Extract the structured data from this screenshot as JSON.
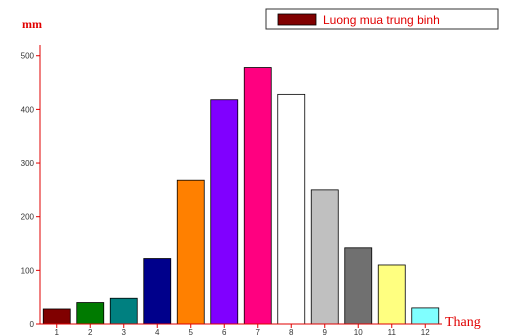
{
  "chart_data": {
    "type": "bar",
    "ylabel": "mm",
    "xlabel": "Thang",
    "ylim": [
      0,
      520
    ],
    "y_ticks": [
      0,
      100,
      200,
      300,
      400,
      500
    ],
    "categories": [
      "1",
      "2",
      "3",
      "4",
      "5",
      "6",
      "7",
      "8",
      "9",
      "10",
      "11",
      "12"
    ],
    "values": [
      28,
      40,
      48,
      122,
      268,
      418,
      478,
      428,
      250,
      142,
      110,
      30
    ],
    "bar_colors": [
      "#800000",
      "#007a00",
      "#008080",
      "#00008b",
      "#ff8000",
      "#8000ff",
      "#ff0080",
      "#ffffff",
      "#c0c0c0",
      "#707070",
      "#ffff80",
      "#80ffff"
    ],
    "legend": {
      "position": "top-right",
      "label": "Luong mua trung binh",
      "color": "#800000"
    },
    "grid": false
  }
}
